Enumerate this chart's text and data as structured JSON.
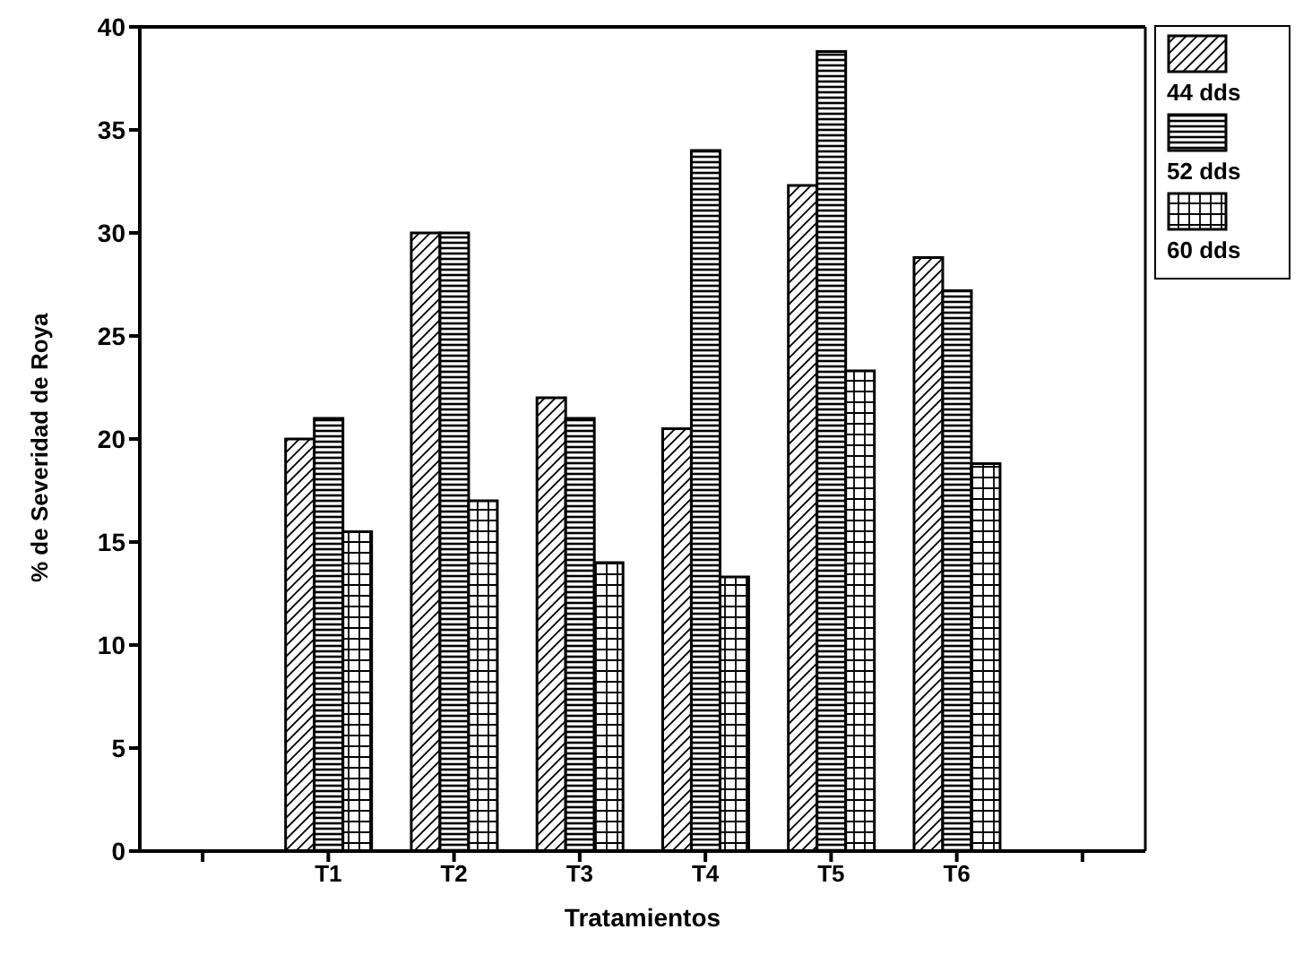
{
  "chart_data": {
    "type": "bar",
    "xlabel": "Tratamientos",
    "ylabel": "% de Severidad de Roya",
    "categories": [
      null,
      "T1",
      "T2",
      "T3",
      "T4",
      "T5",
      "T6",
      null
    ],
    "series": [
      {
        "name": "44 dds",
        "color": "#000000",
        "values": [
          null,
          20,
          30,
          22,
          20.5,
          32.3,
          28.8,
          null
        ]
      },
      {
        "name": "52 dds",
        "color": "#000000",
        "values": [
          null,
          21,
          30,
          21,
          34,
          38.8,
          27.2,
          null
        ]
      },
      {
        "name": "60 dds",
        "color": "#000000",
        "values": [
          null,
          15.5,
          17,
          14,
          13.3,
          23.3,
          18.8,
          null
        ]
      }
    ],
    "ylim": [
      0,
      40
    ],
    "yticks": [
      0,
      5,
      10,
      15,
      20,
      25,
      30,
      35,
      40
    ],
    "grid": false,
    "legend": "top right"
  }
}
